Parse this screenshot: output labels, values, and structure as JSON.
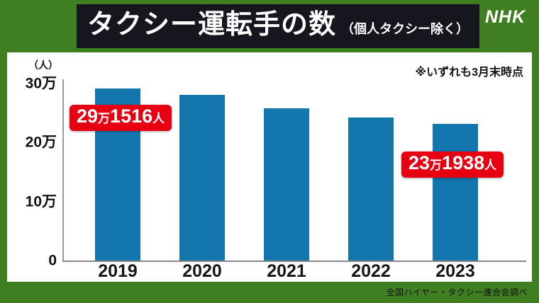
{
  "colors": {
    "frame_green": "#3f7e21",
    "header_bg": "#16161f",
    "panel_white": "#ffffff",
    "bar_blue": "#1377ae",
    "badge_red": "#e60012"
  },
  "header": {
    "title": "タクシー運転手の数",
    "subtitle": "（個人タクシー除く）",
    "logo": "NHK"
  },
  "chart": {
    "unit_label": "（人）",
    "note": "※いずれも3月末時点",
    "source": "全国ハイヤー・タクシー連合会調べ",
    "y_ticks": [
      "30万",
      "20万",
      "10万",
      "0"
    ],
    "annotations": {
      "y2019": "29万1516人",
      "y2023": "23万1938人"
    }
  },
  "chart_data": {
    "type": "bar",
    "title": "タクシー運転手の数（個人タクシー除く）",
    "categories": [
      "2019",
      "2020",
      "2021",
      "2022",
      "2023"
    ],
    "values": [
      291516,
      281000,
      258000,
      242000,
      231938
    ],
    "xlabel": "",
    "ylabel": "人",
    "ylim": [
      0,
      300000
    ],
    "y_tick_interval": 100000,
    "grid": false,
    "legend_position": "none",
    "annotated_bars": [
      {
        "category": "2019",
        "label": "29万1516人"
      },
      {
        "category": "2023",
        "label": "23万1938人"
      }
    ]
  }
}
